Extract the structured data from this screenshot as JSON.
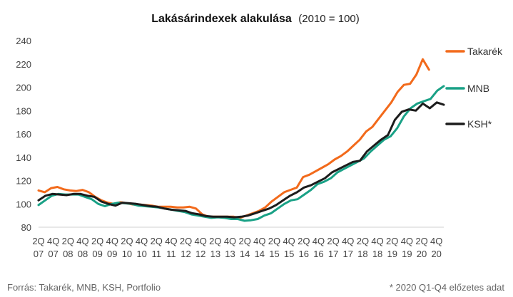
{
  "chart_data": {
    "type": "line",
    "title": "Lakásárindexek alakulása",
    "subtitle": "(2010 = 100)",
    "ylim": [
      80,
      240
    ],
    "yticks": [
      80,
      100,
      120,
      140,
      160,
      180,
      200,
      220,
      240
    ],
    "x_tick_labels": [
      {
        "q": "2Q",
        "y": "07"
      },
      {
        "q": "4Q",
        "y": "07"
      },
      {
        "q": "2Q",
        "y": "08"
      },
      {
        "q": "4Q",
        "y": "08"
      },
      {
        "q": "2Q",
        "y": "09"
      },
      {
        "q": "4Q",
        "y": "09"
      },
      {
        "q": "2Q",
        "y": "10"
      },
      {
        "q": "4Q",
        "y": "10"
      },
      {
        "q": "2Q",
        "y": "11"
      },
      {
        "q": "4Q",
        "y": "11"
      },
      {
        "q": "2Q",
        "y": "12"
      },
      {
        "q": "4Q",
        "y": "12"
      },
      {
        "q": "2Q",
        "y": "13"
      },
      {
        "q": "4Q",
        "y": "13"
      },
      {
        "q": "2Q",
        "y": "14"
      },
      {
        "q": "4Q",
        "y": "14"
      },
      {
        "q": "2Q",
        "y": "15"
      },
      {
        "q": "4Q",
        "y": "15"
      },
      {
        "q": "2Q",
        "y": "16"
      },
      {
        "q": "4Q",
        "y": "16"
      },
      {
        "q": "2Q",
        "y": "17"
      },
      {
        "q": "4Q",
        "y": "17"
      },
      {
        "q": "2Q",
        "y": "18"
      },
      {
        "q": "4Q",
        "y": "18"
      },
      {
        "q": "2Q",
        "y": "19"
      },
      {
        "q": "4Q",
        "y": "19"
      },
      {
        "q": "2Q",
        "y": "20"
      },
      {
        "q": "4Q",
        "y": "20"
      }
    ],
    "grid": false,
    "legend": "right",
    "series": [
      {
        "name": "Takarék",
        "color": "#f26a1b",
        "values": [
          111.5,
          110,
          113.5,
          114.5,
          112.5,
          111.5,
          111,
          112,
          110,
          106,
          103,
          101,
          100,
          101.5,
          100.5,
          99.5,
          99.5,
          99,
          98.5,
          97.5,
          97.5,
          97.5,
          97,
          97,
          97.5,
          96,
          91,
          89,
          89,
          89,
          89,
          89,
          88,
          90,
          92,
          94,
          97,
          102,
          106,
          110,
          112,
          114,
          123,
          125,
          128,
          131,
          134,
          138,
          141,
          145,
          150,
          155,
          162,
          166,
          173,
          180,
          187,
          196,
          202,
          203,
          211,
          224,
          215
        ]
      },
      {
        "name": "MNB",
        "color": "#19a186",
        "values": [
          99,
          103,
          107,
          108.5,
          108,
          108,
          108,
          106,
          104,
          100,
          98,
          100,
          101,
          100.5,
          100,
          98.5,
          98,
          97.5,
          97,
          96,
          95,
          94,
          93,
          91,
          90,
          89,
          88,
          88.5,
          88,
          87,
          87,
          85.5,
          86,
          87,
          90,
          92,
          96,
          100,
          103,
          104,
          108,
          112,
          117,
          119,
          122,
          127,
          130,
          133,
          136,
          139,
          145,
          150,
          155,
          158,
          165,
          175,
          182,
          186,
          188,
          190,
          197,
          201
        ]
      },
      {
        "name": "KSH*",
        "color": "#1c1c1c",
        "values": [
          103,
          107,
          108.5,
          108,
          107.5,
          108.5,
          108.5,
          107,
          106,
          102,
          100,
          98.5,
          101,
          100.5,
          100,
          99,
          98,
          97.5,
          96,
          95,
          94.5,
          94,
          92,
          91,
          89.5,
          89,
          89,
          89,
          88.5,
          89,
          90,
          92,
          94,
          96,
          99,
          103,
          107,
          110,
          114,
          116,
          119,
          122,
          127,
          130,
          133,
          136,
          137,
          145,
          150,
          155,
          159,
          172,
          179,
          181,
          180,
          186,
          182,
          187,
          185
        ]
      }
    ]
  },
  "footer": {
    "source": "Forrás: Takarék, MNB, KSH, Portfolio",
    "note": "* 2020 Q1-Q4 előzetes adat"
  }
}
